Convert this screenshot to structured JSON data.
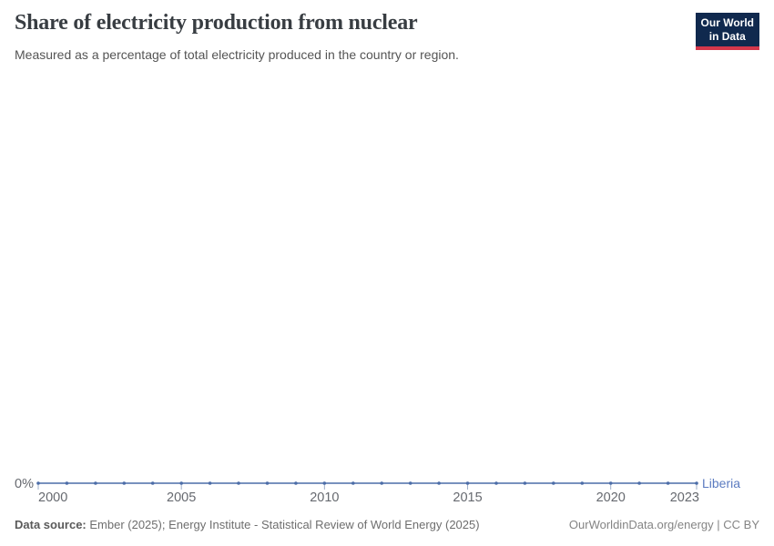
{
  "header": {
    "title": "Share of electricity production from nuclear",
    "subtitle": "Measured as a percentage of total electricity produced in the country or region.",
    "logo_line1": "Our World",
    "logo_line2": "in Data"
  },
  "chart_data": {
    "type": "line",
    "title": "Share of electricity production from nuclear",
    "unit": "%",
    "x": [
      2000,
      2001,
      2002,
      2003,
      2004,
      2005,
      2006,
      2007,
      2008,
      2009,
      2010,
      2011,
      2012,
      2013,
      2014,
      2015,
      2016,
      2017,
      2018,
      2019,
      2020,
      2021,
      2022,
      2023
    ],
    "series": [
      {
        "name": "Liberia",
        "values": [
          0,
          0,
          0,
          0,
          0,
          0,
          0,
          0,
          0,
          0,
          0,
          0,
          0,
          0,
          0,
          0,
          0,
          0,
          0,
          0,
          0,
          0,
          0,
          0
        ]
      }
    ],
    "x_ticks": [
      2000,
      2005,
      2010,
      2015,
      2020,
      2023
    ],
    "y_tick_label": "0%",
    "xlim": [
      2000,
      2023
    ],
    "grid": false,
    "markers": true,
    "legend_position": "end-of-line"
  },
  "footer": {
    "source_label": "Data source:",
    "source_text": " Ember (2025); Energy Institute - Statistical Review of World Energy (2025)",
    "url": "OurWorldinData.org/energy",
    "separator": " | ",
    "license": "CC BY"
  },
  "colors": {
    "line": "#4c6da8",
    "series_label": "#5b7bc0",
    "tick": "#9fafc9",
    "axis_text": "#66696f",
    "logo_bg": "#10294e",
    "logo_accent": "#d4374b",
    "title_text": "#383d42"
  }
}
